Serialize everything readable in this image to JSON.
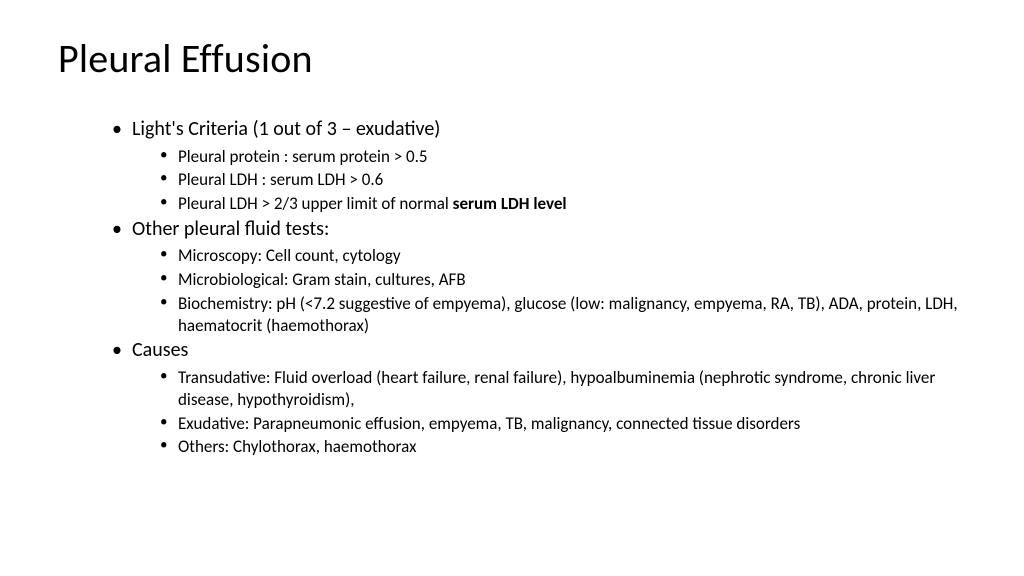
{
  "title": "Pleural Effusion",
  "sections": [
    {
      "heading": "Light's Criteria (1 out of 3 – exudative)",
      "items": [
        {
          "text": "Pleural protein : serum protein > 0.5"
        },
        {
          "text": "Pleural LDH : serum LDH > 0.6"
        },
        {
          "prefix": "Pleural LDH > 2/3 upper limit of normal ",
          "bold": "serum LDH level"
        }
      ]
    },
    {
      "heading": "Other pleural fluid tests:",
      "items": [
        {
          "text": "Microscopy: Cell count, cytology"
        },
        {
          "text": "Microbiological: Gram stain, cultures, AFB"
        },
        {
          "text": "Biochemistry: pH (<7.2 suggestive of empyema), glucose (low: malignancy, empyema, RA, TB), ADA, protein, LDH, haematocrit (haemothorax)"
        }
      ]
    },
    {
      "heading": "Causes",
      "items": [
        {
          "text": "Transudative: Fluid overload (heart failure, renal failure), hypoalbuminemia (nephrotic syndrome, chronic liver disease, hypothyroidism),"
        },
        {
          "text": "Exudative: Parapneumonic effusion, empyema, TB, malignancy, connected tissue disorders"
        },
        {
          "text": "Others: Chylothorax, haemothorax"
        }
      ]
    }
  ],
  "style": {
    "background_color": "#ffffff",
    "text_color": "#000000",
    "title_fontsize": 40,
    "level1_fontsize": 20,
    "level2_fontsize": 17,
    "font_family": "Calibri"
  }
}
